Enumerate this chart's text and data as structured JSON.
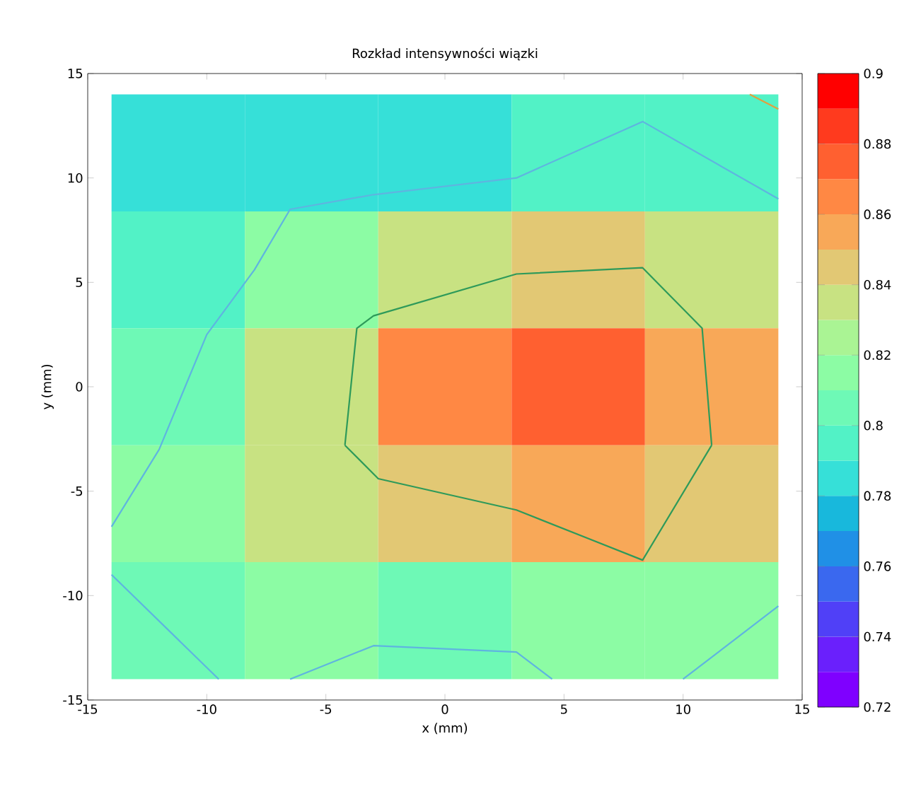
{
  "chart_data": {
    "type": "heatmap",
    "title": "Rozkład intensywności wiązki",
    "xlabel": "x (mm)",
    "ylabel": "y (mm)",
    "x": [
      -11.2,
      -5.6,
      0,
      5.6,
      11.2
    ],
    "y": [
      11.2,
      5.6,
      0,
      -5.6,
      -11.2
    ],
    "cells": [
      [
        0.785,
        0.785,
        0.785,
        0.795,
        0.795
      ],
      [
        0.795,
        0.815,
        0.835,
        0.845,
        0.835
      ],
      [
        0.805,
        0.835,
        0.865,
        0.875,
        0.855
      ],
      [
        0.815,
        0.835,
        0.845,
        0.855,
        0.845
      ],
      [
        0.805,
        0.815,
        0.805,
        0.815,
        0.815
      ]
    ],
    "series": [
      {
        "type": "line",
        "color": "#5fb4e0",
        "x": [
          -14,
          -12,
          -10,
          -8,
          -6.5,
          -3,
          3,
          8.3,
          14
        ],
        "values": [
          -6.7,
          -3,
          2.5,
          5.6,
          8.5,
          9.2,
          10,
          12.7,
          9
        ]
      },
      {
        "type": "line",
        "color": "#5fb4e0",
        "x": [
          -14,
          -9.5
        ],
        "values": [
          -9,
          -14
        ]
      },
      {
        "type": "line",
        "color": "#5fb4e0",
        "x": [
          -6.5,
          -3,
          3,
          4.5
        ],
        "values": [
          -14,
          -12.4,
          -12.7,
          -14
        ]
      },
      {
        "type": "line",
        "color": "#5fb4e0",
        "x": [
          10,
          14
        ],
        "values": [
          -14,
          -10.5
        ]
      },
      {
        "type": "line",
        "color": "#2e9a5a",
        "x": [
          -4.2,
          -3.7,
          -3,
          3,
          8.3,
          10.8,
          11.2
        ],
        "values": [
          -2.8,
          2.8,
          3.4,
          5.4,
          5.7,
          2.8,
          -2.8
        ]
      },
      {
        "type": "line",
        "color": "#2e9a5a",
        "x": [
          -4.2,
          -2.8,
          3,
          8.3,
          11.2
        ],
        "values": [
          -2.8,
          -4.4,
          -5.9,
          -8.3,
          -2.8
        ]
      },
      {
        "type": "line",
        "color": "#e0a040",
        "x": [
          12.8,
          14
        ],
        "values": [
          14,
          13.3
        ]
      }
    ],
    "xlim": [
      -15,
      15
    ],
    "ylim": [
      -15,
      15
    ],
    "xticks": [
      -15,
      -10,
      -5,
      0,
      5,
      10,
      15
    ],
    "yticks": [
      -15,
      -10,
      -5,
      0,
      5,
      10,
      15
    ],
    "clim": [
      0.72,
      0.9
    ],
    "cticks": [
      0.72,
      0.74,
      0.76,
      0.78,
      0.8,
      0.82,
      0.84,
      0.86,
      0.88,
      0.9
    ]
  }
}
